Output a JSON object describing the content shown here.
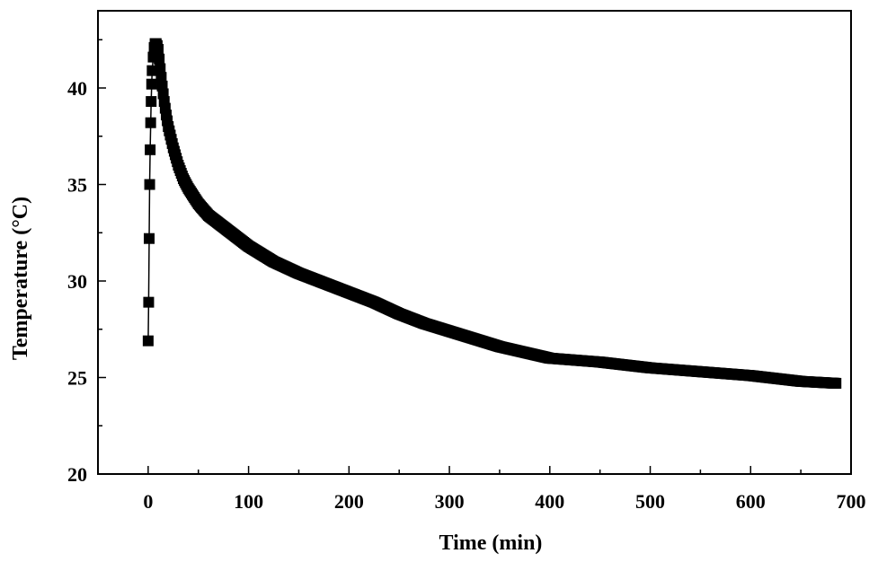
{
  "chart_data": {
    "type": "scatter",
    "xlabel": "Time (min)",
    "ylabel": "Temperature (°C)",
    "xlim": [
      -50,
      700
    ],
    "ylim": [
      20,
      44
    ],
    "xticks": [
      0,
      100,
      200,
      300,
      400,
      500,
      600,
      700
    ],
    "xtick_labels": [
      "0",
      "100",
      "200",
      "300",
      "400",
      "500",
      "600",
      "700"
    ],
    "yticks": [
      20,
      25,
      30,
      35,
      40
    ],
    "ytick_labels": [
      "20",
      "25",
      "30",
      "35",
      "40"
    ],
    "grid": false,
    "marker": "square",
    "color": "#000000",
    "series": [
      {
        "x": [
          0,
          0.5,
          1,
          1.5,
          2,
          2.5,
          3,
          3.5,
          4,
          5,
          6,
          7,
          8,
          9,
          10,
          11,
          12,
          14,
          16,
          18,
          20,
          25,
          30,
          35,
          40,
          50,
          60,
          70,
          80,
          100,
          125,
          150,
          175,
          200,
          225,
          250,
          275,
          300,
          350,
          400,
          450,
          500,
          550,
          600,
          650,
          685
        ],
        "y": [
          26.9,
          28.9,
          32.2,
          35.0,
          36.8,
          38.2,
          39.3,
          40.2,
          40.9,
          41.6,
          42.1,
          42.3,
          42.3,
          42.2,
          42.0,
          41.5,
          41.0,
          40.1,
          39.3,
          38.6,
          38.0,
          36.9,
          36.0,
          35.3,
          34.8,
          34.0,
          33.4,
          33.0,
          32.6,
          31.8,
          31.0,
          30.4,
          29.9,
          29.4,
          28.9,
          28.3,
          27.8,
          27.4,
          26.6,
          26.0,
          25.8,
          25.5,
          25.3,
          25.1,
          24.8,
          24.7
        ]
      }
    ]
  }
}
